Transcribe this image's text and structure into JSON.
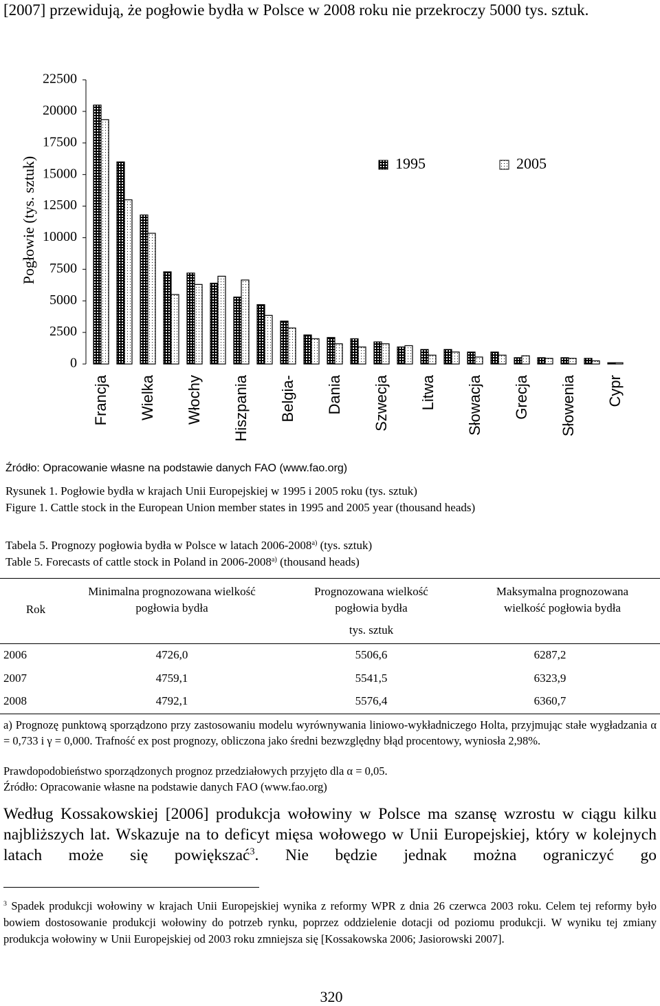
{
  "intro": "[2007] przewidują, że pogłowie bydła w Polsce w 2008 roku nie przekroczy 5000 tys. sztuk.",
  "chart_data": {
    "type": "bar",
    "y_label": "Pogłowie (tys. sztuk)",
    "categories": [
      "Francja",
      null,
      "Wielka",
      null,
      "Włochy",
      null,
      "Hiszpania",
      null,
      "Belgia-",
      null,
      "Dania",
      null,
      "Szwecja",
      null,
      "Litwa",
      null,
      "Słowacja",
      null,
      "Grecja",
      null,
      "Słowenia",
      null,
      "Cypr"
    ],
    "series": [
      {
        "name": "1995",
        "color": "#000000",
        "values": [
          20500,
          16000,
          11800,
          7300,
          7200,
          6400,
          5300,
          4700,
          3400,
          2300,
          2100,
          2000,
          1750,
          1350,
          1150,
          1150,
          950,
          950,
          500,
          500,
          500,
          450,
          100
        ]
      },
      {
        "name": "2005",
        "color": "#ffffff",
        "values": [
          19350,
          13000,
          10350,
          5500,
          6300,
          6950,
          6650,
          3850,
          2850,
          2000,
          1600,
          1350,
          1600,
          1450,
          700,
          950,
          550,
          700,
          650,
          450,
          450,
          250,
          100
        ]
      }
    ],
    "ylim": [
      0,
      22500
    ],
    "yticks": [
      0,
      2500,
      5000,
      7500,
      10000,
      12500,
      15000,
      17500,
      20000,
      22500
    ],
    "legend": "upper right"
  },
  "figure": {
    "source": "Źródło: Opracowanie własne na podstawie danych  FAO (www.fao.org)",
    "caption_pl": "Rysunek 1. Pogłowie bydła w krajach Unii Europejskiej w 1995 i 2005 roku (tys. sztuk)",
    "caption_en": "Figure 1. Cattle stock in the European Union member states in 1995 and 2005 year (thousand heads)"
  },
  "table": {
    "caption_pl": [
      "Tabela 5. Prognozy pogłowia bydła w Polsce w latach 2006-2008",
      "a)",
      " (tys. sztuk)"
    ],
    "caption_en": [
      "Table 5. Forecasts of cattle stock in Poland in 2006-2008",
      "a)",
      " (thousand heads)"
    ],
    "header": [
      "Rok",
      "Minimalna prognozowana wielkość pogłowia bydła",
      "Prognozowana wielkość pogłowia bydła",
      "Maksymalna prognozowana wielkość pogłowia bydła"
    ],
    "unit": "tys. sztuk",
    "rows": [
      [
        "2006",
        "4726,0",
        "5506,6",
        "6287,2"
      ],
      [
        "2007",
        "4759,1",
        "5541,5",
        "6323,9"
      ],
      [
        "2008",
        "4792,1",
        "5576,4",
        "6360,7"
      ]
    ],
    "notes": [
      "a) Prognozę punktową sporządzono przy zastosowaniu modelu wyrównywania liniowo-wykładniczego Holta, przyjmując stałe wygładzania α = 0,733 i γ = 0,000. Trafność ex post prognozy, obliczona jako średni bezwzględny błąd procentowy, wyniosła 2,98%.",
      "Prawdopodobieństwo sporządzonych prognoz przedziałowych przyjęto dla α = 0,05."
    ],
    "source": "Źródło: Opracowanie własne na podstawie danych  FAO (www.fao.org)"
  },
  "paragraph": [
    "Według Kossakowskiej [2006] produkcja wołowiny w Polsce ma szansę wzrostu w ciągu kilku najbliższych lat. Wskazuje na to deficyt mięsa wołowego w Unii Europejskiej, który w kolejnych latach może się powiększać",
    "3",
    ". Nie będzie jednak można ograniczyć go"
  ],
  "footnote": {
    "marker": "3",
    "text": "Spadek produkcji wołowiny w krajach Unii Europejskiej wynika z reformy WPR  z dnia 26 czerwca 2003 roku. Celem tej reformy było bowiem dostosowanie produkcji wołowiny do potrzeb rynku, poprzez oddzielenie dotacji od poziomu produkcji. W wyniku tej zmiany produkcja wołowiny w Unii Europejskiej od 2003 roku zmniejsza się [Kossakowska 2006; Jasiorowski 2007]."
  },
  "page_number": "320"
}
